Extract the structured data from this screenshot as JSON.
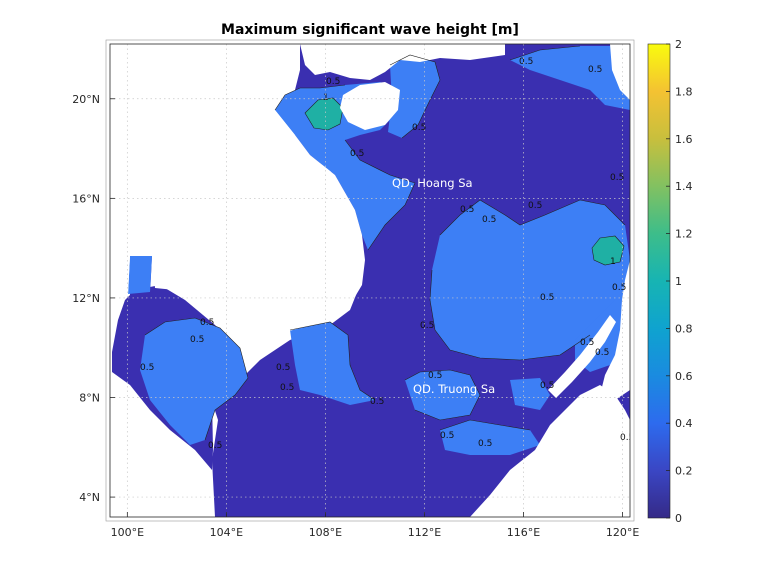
{
  "chart_data": {
    "type": "heatmap",
    "title": "Maximum significant wave height [m]",
    "xlabel": "",
    "ylabel": "",
    "x_ticks": [
      "100°E",
      "104°E",
      "108°E",
      "112°E",
      "116°E",
      "120°E"
    ],
    "y_ticks": [
      "4°N",
      "8°N",
      "12°N",
      "16°N",
      "20°N"
    ],
    "xlim": [
      99.3,
      120.3
    ],
    "ylim": [
      3.2,
      22.2
    ],
    "grid": true,
    "colorbar": {
      "range": [
        0,
        2
      ],
      "ticks": [
        "0",
        "0.2",
        "0.4",
        "0.6",
        "0.8",
        "1",
        "1.2",
        "1.4",
        "1.6",
        "1.8",
        "2"
      ],
      "colormap": "parula"
    },
    "colors": {
      "low_wave": "#3a2fb0",
      "mid_wave": "#3d7ff5",
      "high_wave": "#1fb0a4",
      "land": "#ffffff"
    },
    "place_labels": [
      "QD. Hoang Sa",
      "QD. Truong Sa"
    ],
    "contour_levels": [
      "0.5",
      "1"
    ]
  }
}
